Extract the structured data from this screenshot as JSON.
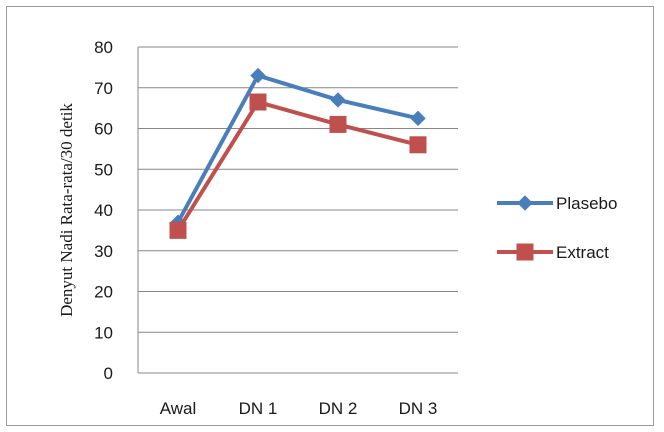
{
  "chart_data": {
    "type": "line",
    "categories": [
      "Awal",
      "DN 1",
      "DN 2",
      "DN 3"
    ],
    "series": [
      {
        "name": "Plasebo",
        "values": [
          37,
          73,
          67,
          62.5
        ],
        "color": "#4a7ebb",
        "marker": "diamond"
      },
      {
        "name": "Extract",
        "values": [
          35,
          66.5,
          61,
          56
        ],
        "color": "#c0504d",
        "marker": "square"
      }
    ],
    "title": "",
    "xlabel": "",
    "ylabel": "Denyut Nadi Rata-rata/30 detik",
    "ylim": [
      0,
      80
    ],
    "yticks": [
      0,
      10,
      20,
      30,
      40,
      50,
      60,
      70,
      80
    ],
    "grid": true,
    "legend_position": "right"
  }
}
